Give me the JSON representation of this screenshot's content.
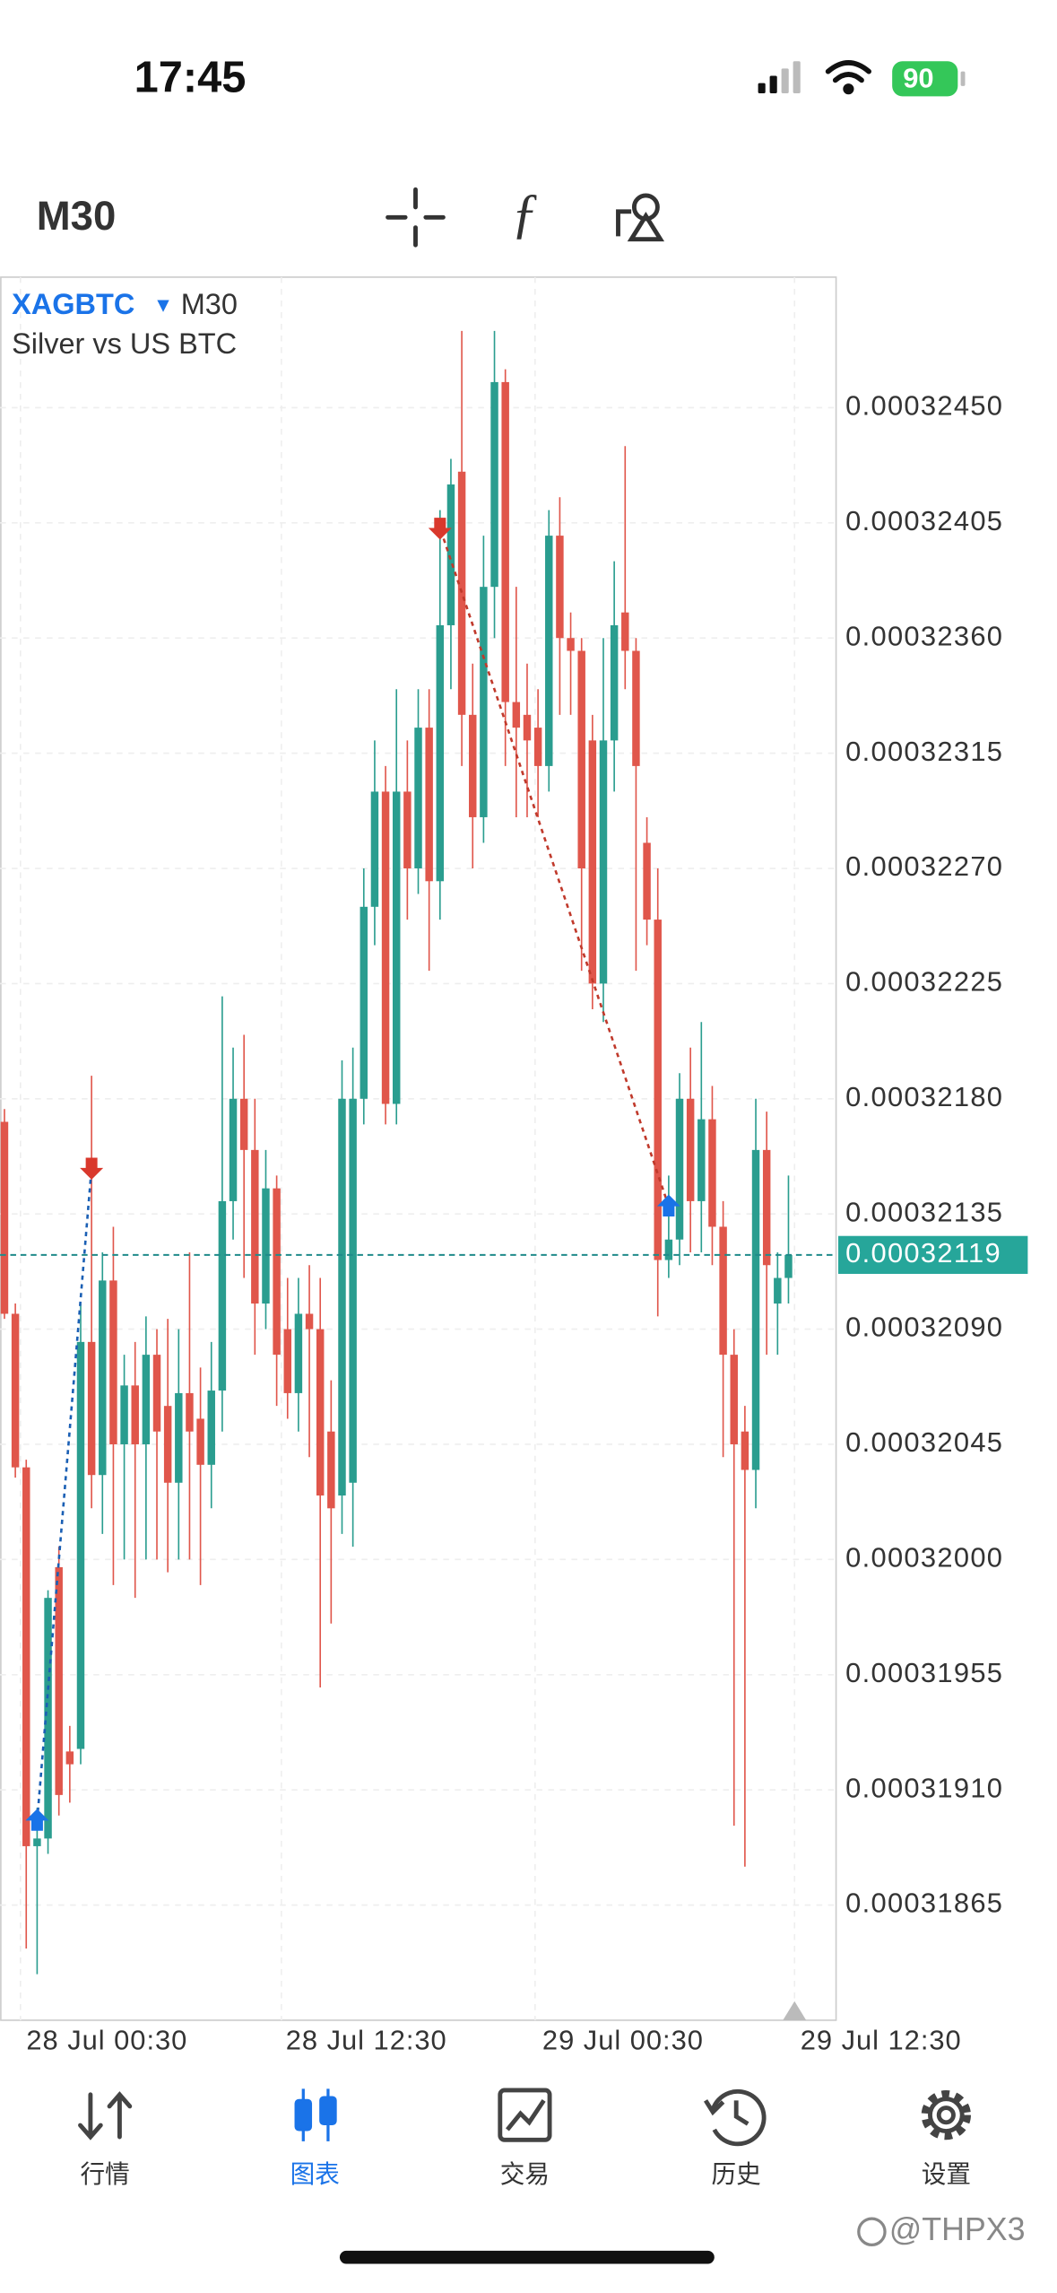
{
  "status_bar": {
    "time": "17:45",
    "battery": "90"
  },
  "toolbar": {
    "timeframe": "M30"
  },
  "chart_data": {
    "type": "candlestick",
    "symbol": "XAGBTC",
    "timeframe": "M30",
    "description": "Silver vs US BTC",
    "up_color": "#2a9d8f",
    "down_color": "#e0564b",
    "ylim": [
      0.0003182,
      0.00032501
    ],
    "yticks": [
      {
        "value": 0.0003245,
        "label": "0.00032450"
      },
      0.00032405,
      {
        "value": 0.0003236,
        "label": "0.00032360"
      },
      0.00032315,
      {
        "value": 0.0003227,
        "label": "0.00032270"
      },
      0.00032225,
      {
        "value": 0.0003218,
        "label": "0.00032180"
      },
      0.00032135,
      {
        "value": 0.0003209,
        "label": "0.00032090"
      },
      0.00032045,
      {
        "value": 0.00032,
        "label": "0.00032000"
      },
      0.00031955,
      {
        "value": 0.0003191,
        "label": "0.00031910"
      },
      0.00031865
    ],
    "xtick_labels": [
      "28 Jul 00:30",
      "28 Jul 12:30",
      "29 Jul 00:30",
      "29 Jul 12:30"
    ],
    "current_price": 0.00032119,
    "open": [
      0.00032171,
      0.00032096,
      0.00032036,
      0.00031888,
      0.00031891,
      0.00031997,
      0.00031925,
      0.00031926,
      0.00032085,
      0.00032033,
      0.00032109,
      0.00032045,
      0.00032068,
      0.00032045,
      0.0003208,
      0.0003206,
      0.0003203,
      0.00032065,
      0.00032055,
      0.00032037,
      0.00032066,
      0.0003214,
      0.0003218,
      0.0003216,
      0.000321,
      0.00032145,
      0.0003209,
      0.00032065,
      0.00032096,
      0.0003209,
      0.0003205,
      0.00032025,
      0.0003203,
      0.0003218,
      0.00032255,
      0.000323,
      0.00032178,
      0.000323,
      0.0003227,
      0.00032325,
      0.00032265,
      0.00032365,
      0.00032425,
      0.0003233,
      0.0003229,
      0.0003238,
      0.0003246,
      0.00032335,
      0.0003233,
      0.00032325,
      0.0003231,
      0.000324,
      0.0003236,
      0.00032355,
      0.0003232,
      0.00032225,
      0.0003232,
      0.0003237,
      0.00032355,
      0.0003228,
      0.0003225,
      0.00032117,
      0.00032125,
      0.0003218,
      0.0003214,
      0.00032172,
      0.0003213,
      0.0003208,
      0.0003205,
      0.00032035,
      0.0003216,
      0.000321,
      0.0003211
    ],
    "high": [
      0.00032176,
      0.000321,
      0.00032039,
      0.00031903,
      0.00031988,
      0.00032005,
      0.00031935,
      0.000321,
      0.00032189,
      0.0003212,
      0.0003213,
      0.0003208,
      0.00032085,
      0.00032095,
      0.0003209,
      0.00032094,
      0.0003209,
      0.0003212,
      0.00032075,
      0.00032085,
      0.0003222,
      0.000322,
      0.00032205,
      0.0003218,
      0.0003216,
      0.0003215,
      0.0003211,
      0.0003211,
      0.00032115,
      0.0003211,
      0.0003207,
      0.00032195,
      0.000322,
      0.0003227,
      0.0003232,
      0.0003231,
      0.0003234,
      0.0003232,
      0.0003234,
      0.0003234,
      0.0003241,
      0.0003243,
      0.0003248,
      0.0003235,
      0.000324,
      0.0003248,
      0.00032465,
      0.0003238,
      0.0003235,
      0.0003234,
      0.0003241,
      0.00032415,
      0.0003237,
      0.0003236,
      0.0003233,
      0.0003236,
      0.0003239,
      0.00032435,
      0.0003236,
      0.0003229,
      0.0003227,
      0.0003215,
      0.0003219,
      0.000322,
      0.0003221,
      0.00032185,
      0.0003214,
      0.0003209,
      0.0003206,
      0.0003218,
      0.00032175,
      0.0003212,
      0.0003215
    ],
    "low": [
      0.00032094,
      0.00032032,
      0.00031848,
      0.00031838,
      0.00031885,
      0.000319,
      0.00031905,
      0.0003192,
      0.0003202,
      0.0003201,
      0.0003199,
      0.00032,
      0.00031985,
      0.00032,
      0.00032,
      0.00031995,
      0.00032,
      0.00032,
      0.0003199,
      0.0003202,
      0.0003205,
      0.00032125,
      0.0003211,
      0.0003208,
      0.0003209,
      0.0003206,
      0.00032055,
      0.0003205,
      0.0003204,
      0.0003195,
      0.00031975,
      0.0003201,
      0.00032005,
      0.0003217,
      0.0003224,
      0.0003217,
      0.0003217,
      0.0003225,
      0.0003226,
      0.0003223,
      0.0003225,
      0.0003234,
      0.0003231,
      0.0003227,
      0.0003228,
      0.0003236,
      0.0003231,
      0.0003229,
      0.0003229,
      0.0003229,
      0.000323,
      0.0003233,
      0.0003233,
      0.0003223,
      0.00032215,
      0.0003221,
      0.000323,
      0.0003234,
      0.0003223,
      0.0003224,
      0.00032095,
      0.0003211,
      0.00032115,
      0.0003212,
      0.0003212,
      0.00032115,
      0.0003204,
      0.00031896,
      0.0003188,
      0.0003202,
      0.0003208,
      0.0003208,
      0.000321
    ],
    "close": [
      0.00032096,
      0.00032036,
      0.00031888,
      0.00031891,
      0.00031985,
      0.00031908,
      0.0003192,
      0.00032085,
      0.00032033,
      0.00032109,
      0.00032045,
      0.00032068,
      0.00032045,
      0.0003208,
      0.0003205,
      0.0003203,
      0.00032065,
      0.0003205,
      0.00032037,
      0.00032066,
      0.0003214,
      0.0003218,
      0.0003216,
      0.000321,
      0.00032145,
      0.0003208,
      0.00032065,
      0.00032096,
      0.0003209,
      0.00032025,
      0.0003202,
      0.0003218,
      0.0003218,
      0.00032255,
      0.000323,
      0.00032178,
      0.000323,
      0.0003227,
      0.00032325,
      0.00032265,
      0.00032365,
      0.0003242,
      0.0003233,
      0.0003229,
      0.0003238,
      0.0003246,
      0.00032335,
      0.00032325,
      0.0003232,
      0.0003231,
      0.000324,
      0.0003236,
      0.00032355,
      0.0003227,
      0.00032225,
      0.0003232,
      0.00032365,
      0.00032355,
      0.0003231,
      0.0003225,
      0.00032117,
      0.00032125,
      0.0003218,
      0.0003214,
      0.00032172,
      0.0003213,
      0.0003208,
      0.00032045,
      0.00032035,
      0.0003216,
      0.00032115,
      0.0003211,
      0.00032119
    ],
    "trades": [
      {
        "buy": 0.00031898,
        "sell": 0.00032153
      },
      {
        "sell": 0.00032403,
        "buy": 0.00032138
      }
    ]
  },
  "tabs": [
    "行情",
    "图表",
    "交易",
    "历史",
    "设置"
  ],
  "watermark": "@THPX3"
}
